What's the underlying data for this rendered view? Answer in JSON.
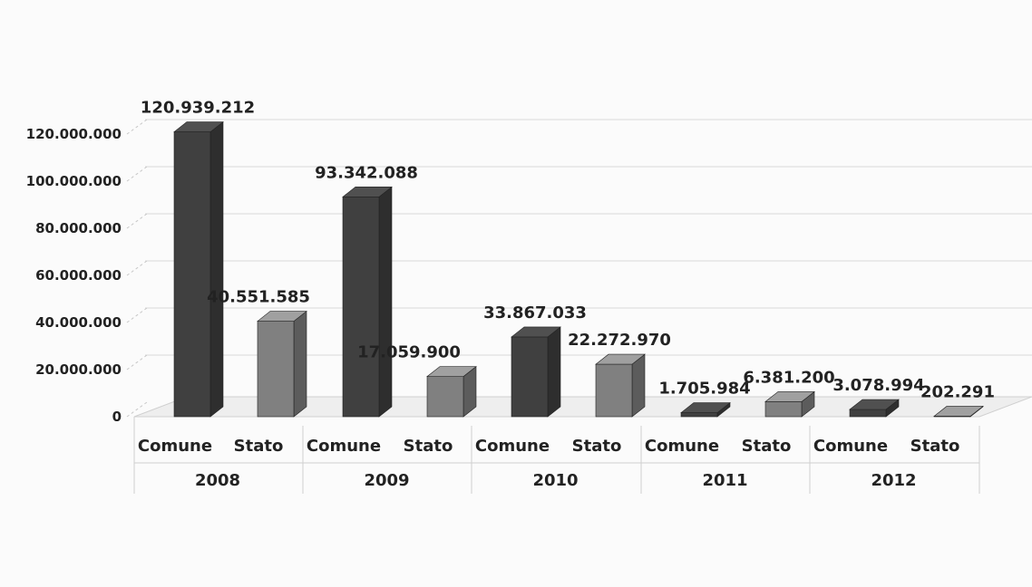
{
  "chart_data": {
    "type": "bar",
    "ylim": [
      0,
      120000000
    ],
    "ytick_values": [
      0,
      20000000,
      40000000,
      60000000,
      80000000,
      100000000,
      120000000
    ],
    "ytick_labels": [
      "0",
      "20.000.000",
      "40.000.000",
      "60.000.000",
      "80.000.000",
      "100.000.000",
      "120.000.000"
    ],
    "grid": true,
    "groups": [
      "2008",
      "2009",
      "2010",
      "2011",
      "2012"
    ],
    "categories": [
      "Comune",
      "Stato"
    ],
    "values": [
      [
        120939212,
        40551585
      ],
      [
        93342088,
        17059900
      ],
      [
        33867033,
        22272970
      ],
      [
        1705984,
        6381200
      ],
      [
        3078994,
        202291
      ]
    ],
    "value_labels": [
      [
        "120.939.212",
        "40.551.585"
      ],
      [
        "93.342.088",
        "17.059.900"
      ],
      [
        "33.867.033",
        "22.272.970"
      ],
      [
        "1.705.984",
        "6.381.200"
      ],
      [
        "3.078.994",
        "202.291"
      ]
    ],
    "colors": {
      "Comune": "#404040",
      "Stato": "#808080"
    }
  }
}
